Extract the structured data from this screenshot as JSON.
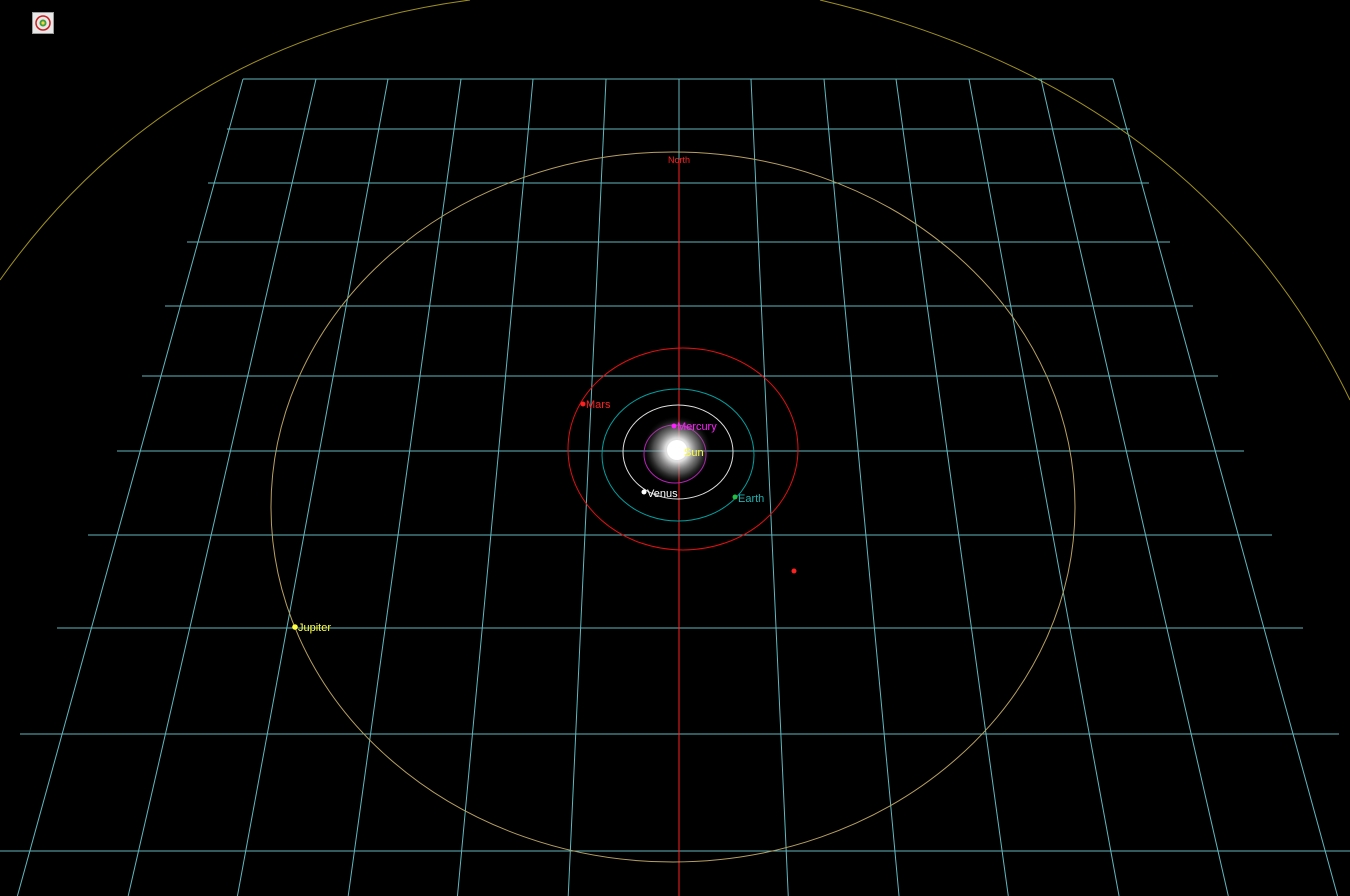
{
  "toolbar": {
    "app_icon": "solar-system-app-icon"
  },
  "scene": {
    "north_label": "North",
    "sun": {
      "name": "Sun",
      "label_color": "#ffff40"
    },
    "planets": [
      {
        "name": "Mercury",
        "color": "#ff20ff",
        "orbit_color": "#c020c0"
      },
      {
        "name": "Venus",
        "color": "#ffffff",
        "orbit_color": "#e0e0e0"
      },
      {
        "name": "Earth",
        "color": "#20c0a0",
        "orbit_color": "#00a0a0"
      },
      {
        "name": "Mars",
        "color": "#ff2020",
        "orbit_color": "#e01010"
      },
      {
        "name": "Jupiter",
        "color": "#ffff40",
        "orbit_color": "#b8a060"
      }
    ],
    "grid_color": "#5fb8c0",
    "north_axis_color": "#ff2020",
    "outer_orbit_color": "#a09020",
    "background": "#000000"
  }
}
